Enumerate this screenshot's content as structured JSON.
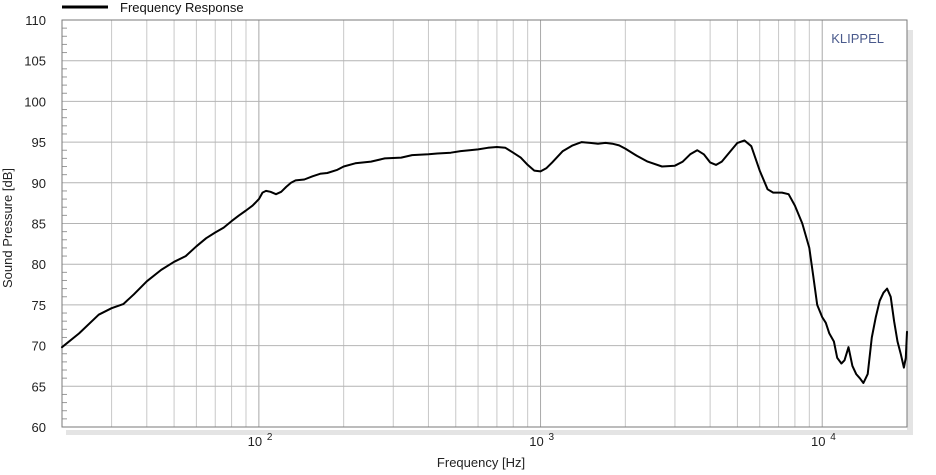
{
  "chart_data": {
    "type": "line",
    "xscale": "log",
    "xlim": [
      20,
      20000
    ],
    "ylim": [
      60,
      110
    ],
    "xlabel": "Frequency  [Hz]",
    "ylabel": "Sound Pressure  [dB]",
    "legend_position": "top-left",
    "grid": true,
    "watermark": "KLIPPEL",
    "y_ticks": [
      "60",
      "65",
      "70",
      "75",
      "80",
      "85",
      "90",
      "95",
      "100",
      "105",
      "110"
    ],
    "x_ticks": [
      {
        "base": "10",
        "exp": "2",
        "value": 100
      },
      {
        "base": "10",
        "exp": "3",
        "value": 1000
      },
      {
        "base": "10",
        "exp": "4",
        "value": 10000
      }
    ],
    "series": [
      {
        "name": "Frequency Response",
        "color": "#000000",
        "points": [
          [
            20,
            69.8
          ],
          [
            23,
            71.5
          ],
          [
            27,
            73.8
          ],
          [
            30,
            74.6
          ],
          [
            33,
            75.1
          ],
          [
            36,
            76.3
          ],
          [
            40,
            77.9
          ],
          [
            45,
            79.3
          ],
          [
            50,
            80.3
          ],
          [
            55,
            81.0
          ],
          [
            60,
            82.2
          ],
          [
            65,
            83.2
          ],
          [
            70,
            83.9
          ],
          [
            75,
            84.5
          ],
          [
            80,
            85.3
          ],
          [
            85,
            86.0
          ],
          [
            90,
            86.6
          ],
          [
            95,
            87.2
          ],
          [
            100,
            88.0
          ],
          [
            103,
            88.8
          ],
          [
            106,
            89.0
          ],
          [
            110,
            88.9
          ],
          [
            115,
            88.6
          ],
          [
            120,
            88.9
          ],
          [
            125,
            89.5
          ],
          [
            130,
            90.0
          ],
          [
            135,
            90.3
          ],
          [
            145,
            90.4
          ],
          [
            155,
            90.8
          ],
          [
            165,
            91.1
          ],
          [
            175,
            91.2
          ],
          [
            190,
            91.6
          ],
          [
            200,
            92.0
          ],
          [
            220,
            92.4
          ],
          [
            250,
            92.6
          ],
          [
            280,
            93.0
          ],
          [
            320,
            93.1
          ],
          [
            350,
            93.4
          ],
          [
            400,
            93.5
          ],
          [
            430,
            93.6
          ],
          [
            480,
            93.7
          ],
          [
            520,
            93.9
          ],
          [
            560,
            94.0
          ],
          [
            600,
            94.1
          ],
          [
            650,
            94.3
          ],
          [
            700,
            94.4
          ],
          [
            750,
            94.3
          ],
          [
            800,
            93.7
          ],
          [
            850,
            93.1
          ],
          [
            900,
            92.2
          ],
          [
            950,
            91.5
          ],
          [
            1000,
            91.4
          ],
          [
            1050,
            91.8
          ],
          [
            1100,
            92.5
          ],
          [
            1200,
            93.9
          ],
          [
            1300,
            94.6
          ],
          [
            1400,
            95.0
          ],
          [
            1500,
            94.9
          ],
          [
            1600,
            94.8
          ],
          [
            1700,
            94.9
          ],
          [
            1800,
            94.8
          ],
          [
            1900,
            94.6
          ],
          [
            2000,
            94.2
          ],
          [
            2200,
            93.3
          ],
          [
            2400,
            92.6
          ],
          [
            2700,
            92.0
          ],
          [
            3000,
            92.1
          ],
          [
            3200,
            92.6
          ],
          [
            3400,
            93.5
          ],
          [
            3600,
            94.0
          ],
          [
            3800,
            93.5
          ],
          [
            4000,
            92.5
          ],
          [
            4200,
            92.2
          ],
          [
            4400,
            92.6
          ],
          [
            4700,
            93.8
          ],
          [
            5000,
            94.9
          ],
          [
            5300,
            95.2
          ],
          [
            5600,
            94.5
          ],
          [
            6000,
            91.5
          ],
          [
            6400,
            89.2
          ],
          [
            6700,
            88.8
          ],
          [
            7200,
            88.8
          ],
          [
            7600,
            88.6
          ],
          [
            8000,
            87.2
          ],
          [
            8500,
            85.0
          ],
          [
            9000,
            82.0
          ],
          [
            9300,
            78.5
          ],
          [
            9600,
            75.0
          ],
          [
            10000,
            73.5
          ],
          [
            10300,
            72.8
          ],
          [
            10600,
            71.5
          ],
          [
            11000,
            70.5
          ],
          [
            11300,
            68.5
          ],
          [
            11700,
            67.8
          ],
          [
            12000,
            68.2
          ],
          [
            12400,
            69.8
          ],
          [
            12800,
            67.5
          ],
          [
            13200,
            66.5
          ],
          [
            13600,
            66.0
          ],
          [
            14000,
            65.4
          ],
          [
            14500,
            66.5
          ],
          [
            15000,
            71.0
          ],
          [
            15500,
            73.5
          ],
          [
            16000,
            75.5
          ],
          [
            16500,
            76.5
          ],
          [
            17000,
            77.0
          ],
          [
            17500,
            76.0
          ],
          [
            18000,
            73.0
          ],
          [
            18500,
            70.5
          ],
          [
            19000,
            69.0
          ],
          [
            19500,
            67.3
          ],
          [
            19800,
            68.5
          ],
          [
            20000,
            71.7
          ]
        ]
      }
    ]
  }
}
